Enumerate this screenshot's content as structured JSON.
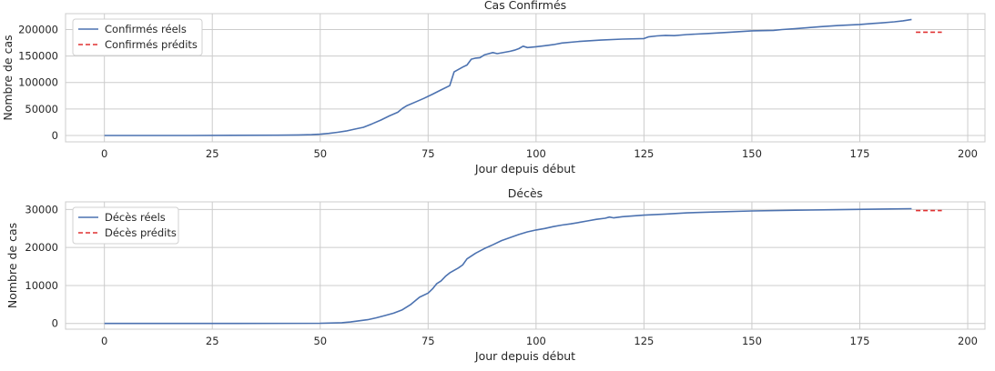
{
  "chart_data": [
    {
      "type": "line",
      "title": "Cas Confirmés",
      "xlabel": "Jour depuis début",
      "ylabel": "Nombre de cas",
      "xlim": [
        -9,
        204
      ],
      "ylim": [
        -12000,
        230000
      ],
      "xticks": [
        0,
        25,
        50,
        75,
        100,
        125,
        150,
        175,
        200
      ],
      "yticks": [
        0,
        50000,
        100000,
        150000,
        200000
      ],
      "grid": true,
      "legend_position": "top-left",
      "series": [
        {
          "name": "Confirmés réels",
          "style": "solid",
          "color": "#4c72b0",
          "x": [
            0,
            20,
            40,
            45,
            48,
            50,
            52,
            54,
            56,
            58,
            60,
            62,
            64,
            66,
            68,
            69,
            70,
            72,
            74,
            76,
            78,
            80,
            81,
            83,
            84,
            85,
            86,
            87,
            88,
            90,
            91,
            92,
            94,
            95,
            96,
            97,
            98,
            100,
            102,
            104,
            106,
            110,
            115,
            120,
            125,
            126,
            128,
            130,
            132,
            135,
            140,
            145,
            150,
            155,
            157,
            160,
            163,
            166,
            170,
            175,
            178,
            180,
            183,
            185,
            187
          ],
          "y": [
            0,
            10,
            500,
            1000,
            1500,
            2500,
            4000,
            6000,
            8500,
            12000,
            15500,
            22000,
            29000,
            37000,
            44000,
            51000,
            56000,
            63000,
            70000,
            78000,
            86000,
            94000,
            120000,
            129000,
            133000,
            144000,
            146000,
            147000,
            152000,
            156500,
            154500,
            156000,
            159000,
            161000,
            164000,
            168500,
            166000,
            167500,
            169500,
            171500,
            174500,
            177500,
            180000,
            182000,
            183000,
            186000,
            188000,
            189000,
            188500,
            190500,
            192500,
            195000,
            197500,
            198500,
            200000,
            201500,
            203500,
            205500,
            207500,
            209500,
            211500,
            212500,
            214500,
            216500,
            219000
          ]
        },
        {
          "name": "Confirmés prédits",
          "style": "dashed",
          "color": "#e03131",
          "x": [
            188,
            194
          ],
          "y": [
            195000,
            195000
          ]
        }
      ]
    },
    {
      "type": "line",
      "title": "Décès",
      "xlabel": "Jour depuis début",
      "ylabel": "Nombre de cas",
      "xlim": [
        -9,
        204
      ],
      "ylim": [
        -1500,
        32000
      ],
      "xticks": [
        0,
        25,
        50,
        75,
        100,
        125,
        150,
        175,
        200
      ],
      "yticks": [
        0,
        10000,
        20000,
        30000
      ],
      "grid": true,
      "legend_position": "top-left",
      "series": [
        {
          "name": "Décès réels",
          "style": "solid",
          "color": "#4c72b0",
          "x": [
            0,
            30,
            50,
            55,
            57,
            59,
            61,
            63,
            65,
            67,
            69,
            71,
            73,
            75,
            76,
            77,
            78,
            79,
            80,
            82,
            83,
            84,
            86,
            88,
            90,
            92,
            94,
            96,
            98,
            100,
            102,
            104,
            106,
            108,
            110,
            112,
            114,
            116,
            117,
            118,
            120,
            125,
            130,
            135,
            140,
            150,
            160,
            170,
            180,
            187
          ],
          "y": [
            0,
            0,
            50,
            200,
            400,
            700,
            1000,
            1500,
            2100,
            2700,
            3600,
            5000,
            6900,
            8000,
            9100,
            10500,
            11200,
            12400,
            13300,
            14600,
            15400,
            17000,
            18500,
            19700,
            20700,
            21800,
            22600,
            23400,
            24100,
            24600,
            25000,
            25500,
            25900,
            26200,
            26600,
            27000,
            27400,
            27700,
            28000,
            27800,
            28100,
            28500,
            28800,
            29100,
            29300,
            29600,
            29800,
            29950,
            30100,
            30200
          ]
        },
        {
          "name": "Décès prédits",
          "style": "dashed",
          "color": "#e03131",
          "x": [
            188,
            194
          ],
          "y": [
            29700,
            29700
          ]
        }
      ]
    }
  ]
}
